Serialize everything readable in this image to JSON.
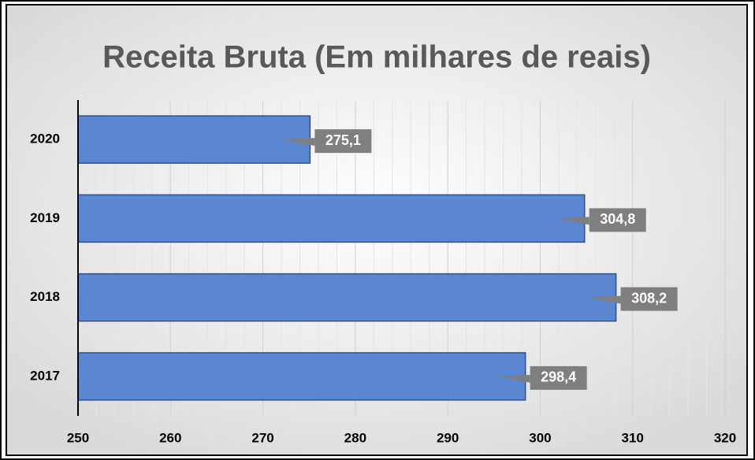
{
  "chart_data": {
    "type": "barh",
    "title": "Receita Bruta (Em milhares de reais)",
    "categories": [
      "2020",
      "2019",
      "2018",
      "2017"
    ],
    "values": [
      275.1,
      304.8,
      308.2,
      298.4
    ],
    "value_labels": [
      "275,1",
      "304,8",
      "308,2",
      "298,4"
    ],
    "color": "#5b86d1",
    "xlim": [
      250,
      320
    ],
    "xticks": [
      250,
      260,
      270,
      280,
      290,
      300,
      310,
      320
    ],
    "xminorticks": [
      252,
      254,
      256,
      258,
      262,
      264,
      266,
      268,
      272,
      274,
      276,
      278,
      282,
      284,
      286,
      288,
      292,
      294,
      296,
      298,
      302,
      304,
      306,
      308,
      312,
      314,
      316,
      318
    ],
    "grid": true
  }
}
